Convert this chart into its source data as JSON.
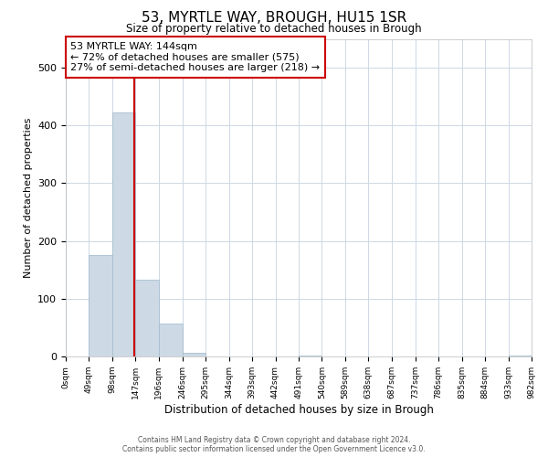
{
  "title": "53, MYRTLE WAY, BROUGH, HU15 1SR",
  "subtitle": "Size of property relative to detached houses in Brough",
  "xlabel": "Distribution of detached houses by size in Brough",
  "ylabel": "Number of detached properties",
  "bar_edges": [
    0,
    49,
    98,
    147,
    196,
    246,
    295,
    344,
    393,
    442,
    491,
    540,
    589,
    638,
    687,
    737,
    786,
    835,
    884,
    933,
    982
  ],
  "bar_heights": [
    0,
    175,
    422,
    133,
    57,
    7,
    0,
    0,
    0,
    0,
    2,
    0,
    0,
    0,
    0,
    0,
    0,
    0,
    0,
    2
  ],
  "bar_color": "#cdd9e5",
  "bar_edge_color": "#a8bfd0",
  "vline_x": 144,
  "vline_color": "#cc0000",
  "ylim": [
    0,
    550
  ],
  "xlim": [
    0,
    982
  ],
  "annotation_title": "53 MYRTLE WAY: 144sqm",
  "annotation_line1": "← 72% of detached houses are smaller (575)",
  "annotation_line2": "27% of semi-detached houses are larger (218) →",
  "footer_line1": "Contains HM Land Registry data © Crown copyright and database right 2024.",
  "footer_line2": "Contains public sector information licensed under the Open Government Licence v3.0.",
  "tick_labels": [
    "0sqm",
    "49sqm",
    "98sqm",
    "147sqm",
    "196sqm",
    "246sqm",
    "295sqm",
    "344sqm",
    "393sqm",
    "442sqm",
    "491sqm",
    "540sqm",
    "589sqm",
    "638sqm",
    "687sqm",
    "737sqm",
    "786sqm",
    "835sqm",
    "884sqm",
    "933sqm",
    "982sqm"
  ],
  "background_color": "#ffffff",
  "grid_color": "#ccd8e4"
}
